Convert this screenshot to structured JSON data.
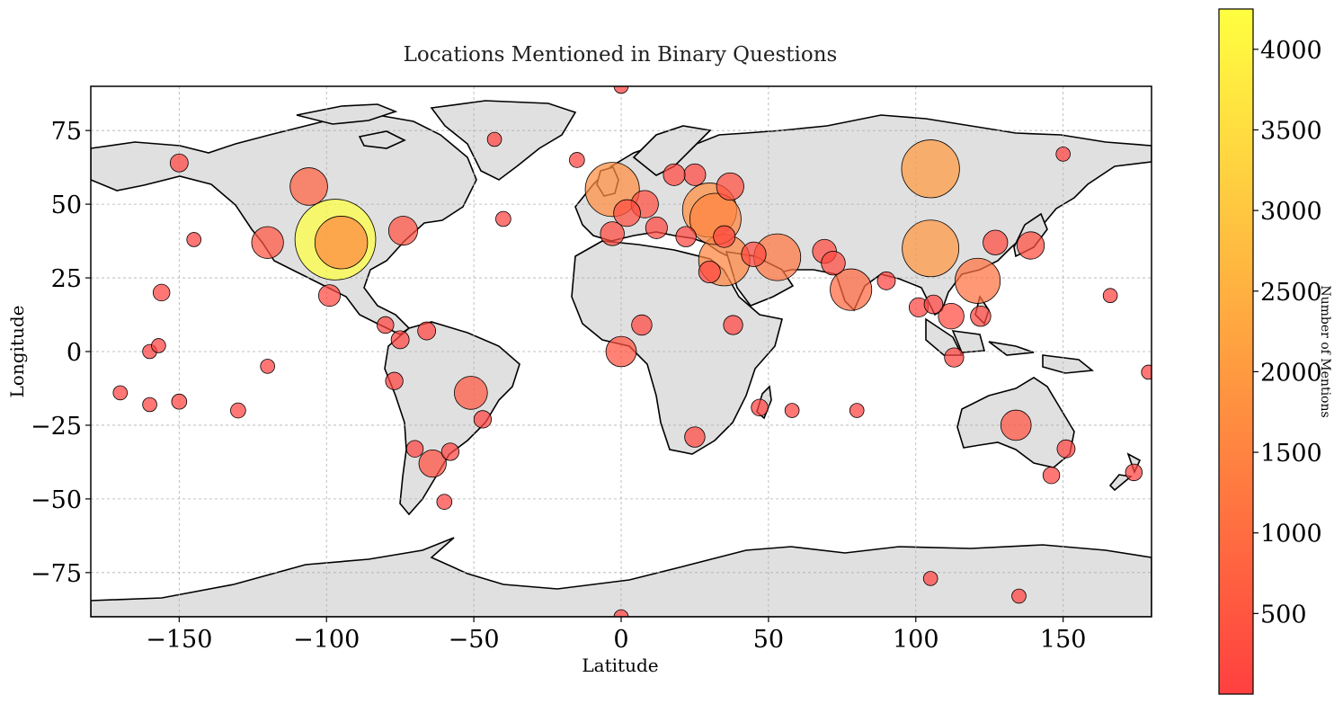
{
  "chart_data": {
    "type": "scatter",
    "title": "Locations Mentioned in Binary Questions",
    "xlabel": "Latitude",
    "ylabel": "Longitude",
    "xlim": [
      -180,
      180
    ],
    "ylim": [
      -90,
      90
    ],
    "xticks": [
      -150,
      -100,
      -50,
      0,
      50,
      100,
      150
    ],
    "yticks": [
      -75,
      -50,
      -25,
      0,
      25,
      50,
      75
    ],
    "grid": true,
    "background": "world-map-land-gray",
    "colormap": {
      "name": "autumn",
      "low_color": "#ff4040",
      "high_color": "#ffff40",
      "min": 0,
      "max": 4250
    },
    "colorbar": {
      "label": "Number of Mentions",
      "ticks": [
        500,
        1000,
        1500,
        2000,
        2500,
        3000,
        3500,
        4000
      ]
    },
    "points": [
      {
        "lon": -97,
        "lat": 38,
        "mentions": 4250
      },
      {
        "lon": -95,
        "lat": 37,
        "mentions": 1600
      },
      {
        "lon": 105,
        "lat": 62,
        "mentions": 2000
      },
      {
        "lon": 105,
        "lat": 35,
        "mentions": 1900
      },
      {
        "lon": 35,
        "lat": 31,
        "mentions": 1500
      },
      {
        "lon": -3,
        "lat": 55,
        "mentions": 1700
      },
      {
        "lon": 30,
        "lat": 48,
        "mentions": 1700
      },
      {
        "lon": 32,
        "lat": 45,
        "mentions": 1500
      },
      {
        "lon": 53,
        "lat": 32,
        "mentions": 1200
      },
      {
        "lon": 121,
        "lat": 24,
        "mentions": 1100
      },
      {
        "lon": 78,
        "lat": 21,
        "mentions": 900
      },
      {
        "lon": -106,
        "lat": 56,
        "mentions": 700
      },
      {
        "lon": 0,
        "lat": 0,
        "mentions": 400
      },
      {
        "lon": -51,
        "lat": -14,
        "mentions": 500
      },
      {
        "lon": 134,
        "lat": -25,
        "mentions": 400
      },
      {
        "lon": -64,
        "lat": -38,
        "mentions": 300
      },
      {
        "lon": -120,
        "lat": 37,
        "mentions": 450
      },
      {
        "lon": -74,
        "lat": 41,
        "mentions": 350
      },
      {
        "lon": 8,
        "lat": 50,
        "mentions": 300
      },
      {
        "lon": 2,
        "lat": 47,
        "mentions": 280
      },
      {
        "lon": 37,
        "lat": 56,
        "mentions": 300
      },
      {
        "lon": 139,
        "lat": 36,
        "mentions": 300
      },
      {
        "lon": 127,
        "lat": 37,
        "mentions": 220
      },
      {
        "lon": 45,
        "lat": 33,
        "mentions": 220
      },
      {
        "lon": 69,
        "lat": 34,
        "mentions": 200
      },
      {
        "lon": 72,
        "lat": 30,
        "mentions": 200
      },
      {
        "lon": 112,
        "lat": 12,
        "mentions": 250
      },
      {
        "lon": 25,
        "lat": 60,
        "mentions": 150
      },
      {
        "lon": 18,
        "lat": 60,
        "mentions": 150
      },
      {
        "lon": -150,
        "lat": 64,
        "mentions": 80
      },
      {
        "lon": -156,
        "lat": 20,
        "mentions": 60
      },
      {
        "lon": -40,
        "lat": 45,
        "mentions": 40
      },
      {
        "lon": -15,
        "lat": 65,
        "mentions": 40
      },
      {
        "lon": -3,
        "lat": 40,
        "mentions": 200
      },
      {
        "lon": 12,
        "lat": 42,
        "mentions": 150
      },
      {
        "lon": 22,
        "lat": 39,
        "mentions": 120
      },
      {
        "lon": 35,
        "lat": 39,
        "mentions": 150
      },
      {
        "lon": 30,
        "lat": 27,
        "mentions": 150
      },
      {
        "lon": 7,
        "lat": 9,
        "mentions": 120
      },
      {
        "lon": 38,
        "lat": 9,
        "mentions": 100
      },
      {
        "lon": 25,
        "lat": -29,
        "mentions": 120
      },
      {
        "lon": 47,
        "lat": -19,
        "mentions": 60
      },
      {
        "lon": 90,
        "lat": 24,
        "mentions": 80
      },
      {
        "lon": 101,
        "lat": 15,
        "mentions": 100
      },
      {
        "lon": 106,
        "lat": 16,
        "mentions": 90
      },
      {
        "lon": 113,
        "lat": -2,
        "mentions": 100
      },
      {
        "lon": 122,
        "lat": 12,
        "mentions": 120
      },
      {
        "lon": 146,
        "lat": -42,
        "mentions": 60
      },
      {
        "lon": 151,
        "lat": -33,
        "mentions": 80
      },
      {
        "lon": 174,
        "lat": -41,
        "mentions": 60
      },
      {
        "lon": -99,
        "lat": 19,
        "mentions": 150
      },
      {
        "lon": -80,
        "lat": 9,
        "mentions": 60
      },
      {
        "lon": -66,
        "lat": 7,
        "mentions": 80
      },
      {
        "lon": -75,
        "lat": 4,
        "mentions": 80
      },
      {
        "lon": -77,
        "lat": -10,
        "mentions": 70
      },
      {
        "lon": -70,
        "lat": -33,
        "mentions": 60
      },
      {
        "lon": -58,
        "lat": -34,
        "mentions": 70
      },
      {
        "lon": -47,
        "lat": -23,
        "mentions": 70
      },
      {
        "lon": -60,
        "lat": -51,
        "mentions": 40
      },
      {
        "lon": -170,
        "lat": -14,
        "mentions": 30
      },
      {
        "lon": -160,
        "lat": 0,
        "mentions": 30
      },
      {
        "lon": -157,
        "lat": 2,
        "mentions": 30
      },
      {
        "lon": -160,
        "lat": -18,
        "mentions": 30
      },
      {
        "lon": -150,
        "lat": -17,
        "mentions": 40
      },
      {
        "lon": -130,
        "lat": -20,
        "mentions": 40
      },
      {
        "lon": -120,
        "lat": -5,
        "mentions": 30
      },
      {
        "lon": -145,
        "lat": 38,
        "mentions": 30
      },
      {
        "lon": -43,
        "lat": 72,
        "mentions": 30
      },
      {
        "lon": 105,
        "lat": -77,
        "mentions": 30
      },
      {
        "lon": 135,
        "lat": -83,
        "mentions": 30
      },
      {
        "lon": 0,
        "lat": -90,
        "mentions": 30
      },
      {
        "lon": 0,
        "lat": 90,
        "mentions": 30
      },
      {
        "lon": 166,
        "lat": 19,
        "mentions": 30
      },
      {
        "lon": 179,
        "lat": -7,
        "mentions": 30
      },
      {
        "lon": 150,
        "lat": 67,
        "mentions": 30
      },
      {
        "lon": 80,
        "lat": -20,
        "mentions": 30
      },
      {
        "lon": 58,
        "lat": -20,
        "mentions": 30
      }
    ]
  }
}
